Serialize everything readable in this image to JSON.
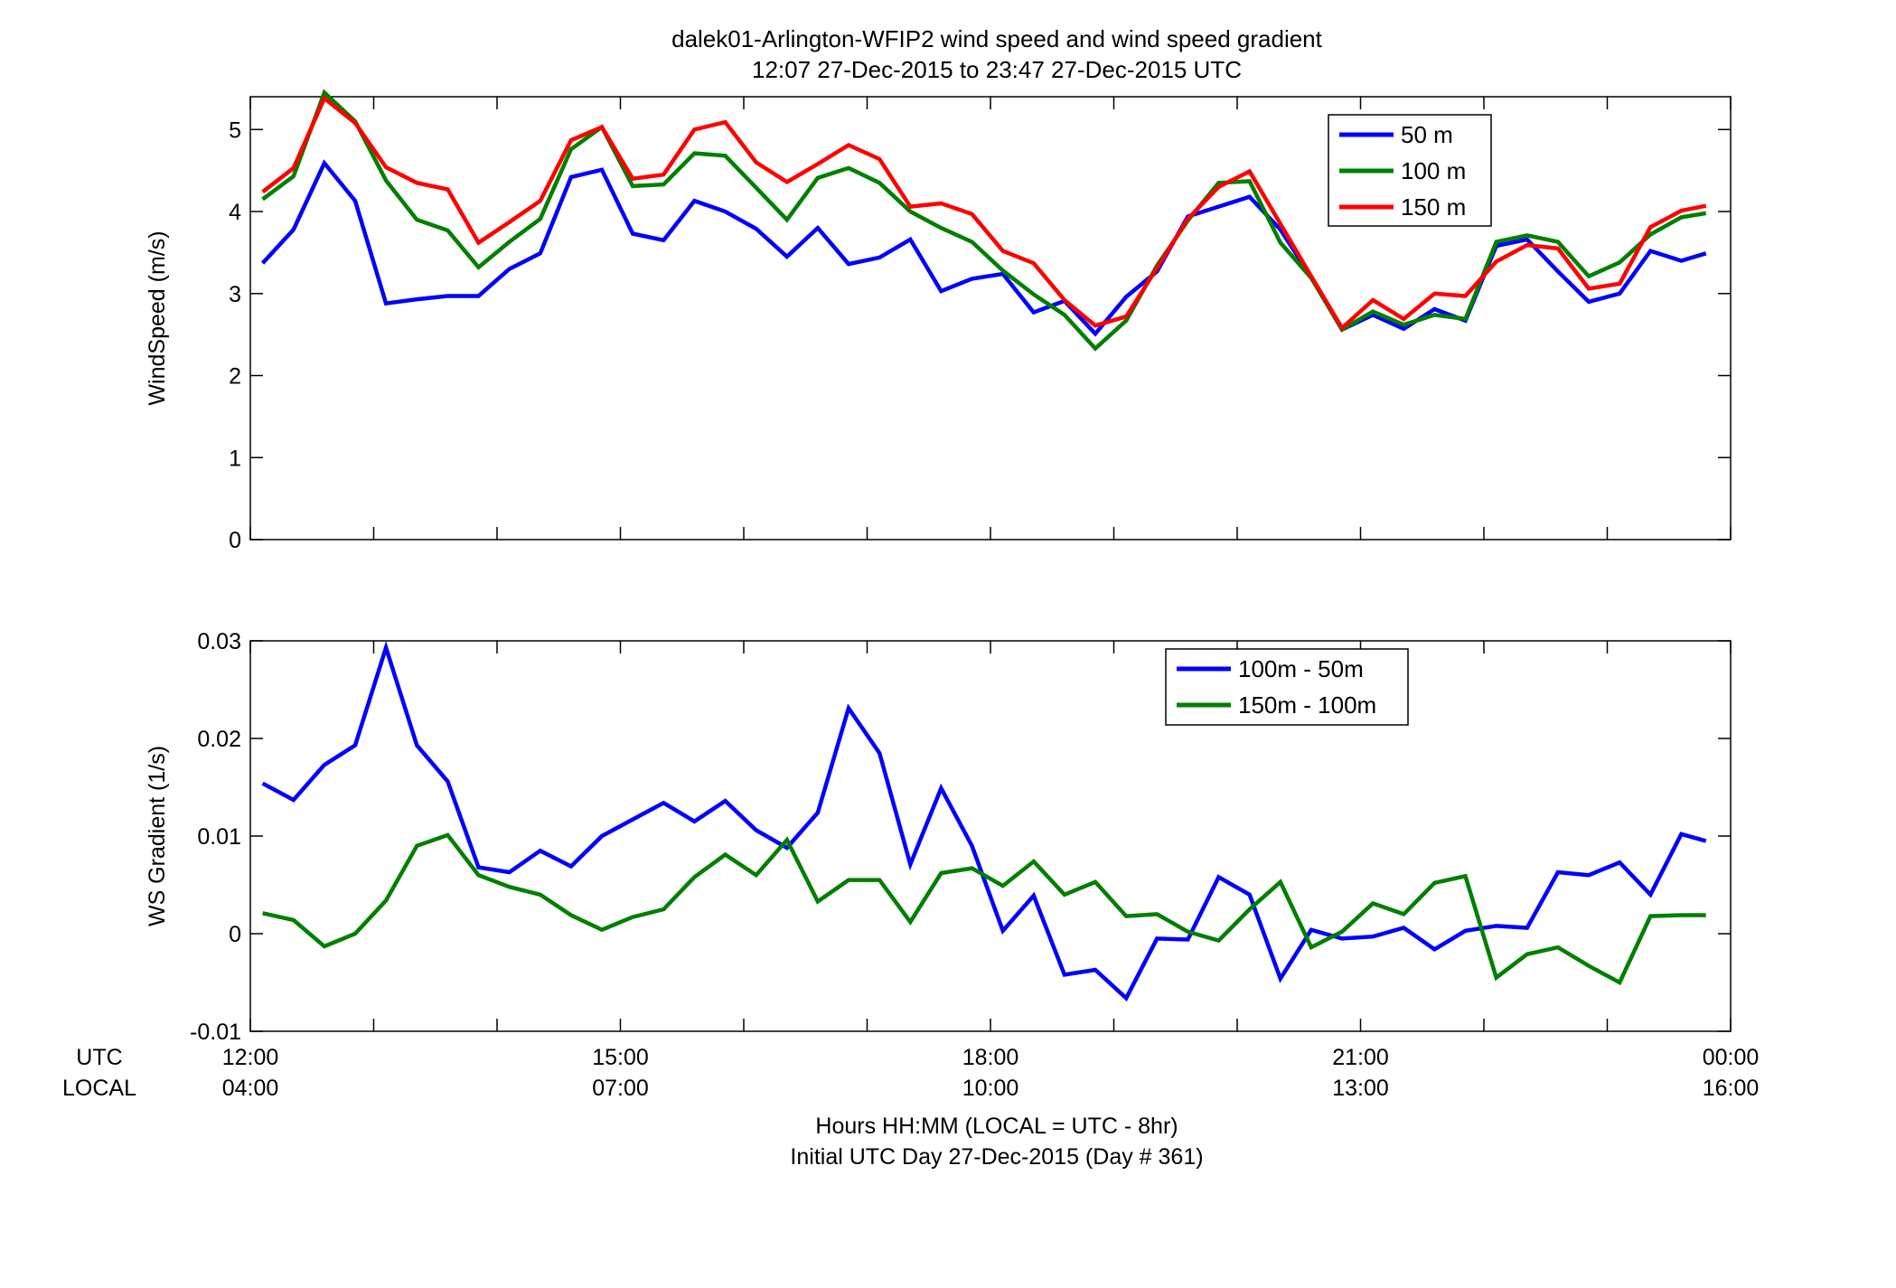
{
  "figure": {
    "title_line1": "dalek01-Arlington-WFIP2  wind speed and wind speed gradient",
    "title_line2": "12:07 27-Dec-2015 to 23:47 27-Dec-2015  UTC",
    "xlabel_line1": "Hours HH:MM  (LOCAL = UTC - 8hr)",
    "xlabel_line2": "Initial UTC Day 27-Dec-2015 (Day # 361)",
    "utc_row_label": "UTC",
    "local_row_label": "LOCAL",
    "utc_ticks": [
      "12:00",
      "15:00",
      "18:00",
      "21:00",
      "00:00"
    ],
    "local_ticks": [
      "04:00",
      "07:00",
      "10:00",
      "13:00",
      "16:00"
    ]
  },
  "chart_data": [
    {
      "type": "line",
      "ylabel": "WindSpeed (m/s)",
      "xlim": [
        12.0,
        24.0
      ],
      "ylim": [
        0,
        5.4
      ],
      "yticks": [
        0,
        1,
        2,
        3,
        4,
        5
      ],
      "ytick_labels": [
        "0",
        "1",
        "2",
        "3",
        "4",
        "5"
      ],
      "legend_position": "top-right",
      "x": [
        12.1,
        12.35,
        12.6,
        12.85,
        13.1,
        13.35,
        13.6,
        13.85,
        14.1,
        14.35,
        14.6,
        14.85,
        15.1,
        15.35,
        15.6,
        15.85,
        16.1,
        16.35,
        16.6,
        16.85,
        17.1,
        17.35,
        17.6,
        17.85,
        18.1,
        18.35,
        18.6,
        18.85,
        19.1,
        19.35,
        19.6,
        19.85,
        20.1,
        20.35,
        20.6,
        20.85,
        21.1,
        21.35,
        21.6,
        21.85,
        22.1,
        22.35,
        22.6,
        22.85,
        23.1,
        23.35,
        23.6,
        23.8
      ],
      "series": [
        {
          "name": "50 m",
          "color": "#0000ff",
          "values": [
            3.37,
            3.78,
            4.59,
            4.13,
            2.88,
            2.93,
            2.97,
            2.97,
            3.3,
            3.49,
            4.42,
            4.51,
            3.73,
            3.65,
            4.13,
            4.0,
            3.79,
            3.45,
            3.8,
            3.36,
            3.44,
            3.66,
            3.03,
            3.18,
            3.24,
            2.77,
            2.91,
            2.51,
            2.96,
            3.27,
            3.94,
            4.06,
            4.18,
            3.78,
            3.2,
            2.56,
            2.74,
            2.57,
            2.81,
            2.67,
            3.58,
            3.66,
            3.27,
            2.9,
            3.0,
            3.52,
            3.4,
            3.49
          ]
        },
        {
          "name": "100 m",
          "color": "#007f00",
          "values": [
            4.15,
            4.43,
            5.45,
            5.1,
            4.38,
            3.9,
            3.77,
            3.32,
            3.63,
            3.91,
            4.76,
            5.03,
            4.31,
            4.33,
            4.71,
            4.68,
            4.29,
            3.9,
            4.41,
            4.53,
            4.35,
            4.0,
            3.8,
            3.63,
            3.28,
            2.99,
            2.74,
            2.33,
            2.67,
            3.34,
            3.89,
            4.35,
            4.37,
            3.62,
            3.19,
            2.56,
            2.78,
            2.62,
            2.74,
            2.69,
            3.63,
            3.71,
            3.63,
            3.21,
            3.38,
            3.72,
            3.93,
            3.98
          ]
        },
        {
          "name": "150 m",
          "color": "#ff0000",
          "values": [
            4.24,
            4.53,
            5.38,
            5.08,
            4.54,
            4.35,
            4.27,
            3.62,
            3.87,
            4.13,
            4.87,
            5.03,
            4.4,
            4.45,
            5.0,
            5.09,
            4.6,
            4.36,
            4.58,
            4.81,
            4.64,
            4.06,
            4.1,
            3.97,
            3.52,
            3.37,
            2.92,
            2.61,
            2.72,
            3.31,
            3.91,
            4.3,
            4.49,
            3.85,
            3.21,
            2.58,
            2.92,
            2.69,
            3.0,
            2.97,
            3.39,
            3.59,
            3.55,
            3.06,
            3.12,
            3.81,
            4.01,
            4.07
          ]
        }
      ]
    },
    {
      "type": "line",
      "ylabel": "WS Gradient (1/s)",
      "xlim": [
        12.0,
        24.0
      ],
      "ylim": [
        -0.01,
        0.03
      ],
      "yticks": [
        -0.01,
        0,
        0.01,
        0.02,
        0.03
      ],
      "ytick_labels": [
        "-0.01",
        "0",
        "0.01",
        "0.02",
        "0.03"
      ],
      "legend_position": "top-right",
      "x": [
        12.1,
        12.35,
        12.6,
        12.85,
        13.1,
        13.35,
        13.6,
        13.85,
        14.1,
        14.35,
        14.6,
        14.85,
        15.1,
        15.35,
        15.6,
        15.85,
        16.1,
        16.35,
        16.6,
        16.85,
        17.1,
        17.35,
        17.6,
        17.85,
        18.1,
        18.35,
        18.6,
        18.85,
        19.1,
        19.35,
        19.6,
        19.85,
        20.1,
        20.35,
        20.6,
        20.85,
        21.1,
        21.35,
        21.6,
        21.85,
        22.1,
        22.35,
        22.6,
        22.85,
        23.1,
        23.35,
        23.6,
        23.8
      ],
      "series": [
        {
          "name": "100m - 50m",
          "color": "#0000ff",
          "values": [
            0.0154,
            0.0137,
            0.0173,
            0.0193,
            0.0293,
            0.0193,
            0.0156,
            0.0068,
            0.0063,
            0.0085,
            0.0069,
            0.01,
            0.0117,
            0.0134,
            0.0115,
            0.0136,
            0.0106,
            0.0088,
            0.0124,
            0.0231,
            0.0185,
            0.0071,
            0.0149,
            0.009,
            0.0003,
            0.0039,
            -0.0042,
            -0.0037,
            -0.0066,
            -0.0005,
            -0.0006,
            0.0058,
            0.004,
            -0.0046,
            0.0004,
            -0.0005,
            -0.0003,
            0.0006,
            -0.0016,
            0.0003,
            0.0008,
            0.0006,
            0.0063,
            0.006,
            0.0073,
            0.004,
            0.0102,
            0.0095
          ]
        },
        {
          "name": "150m - 100m",
          "color": "#007f00",
          "values": [
            0.0021,
            0.0014,
            -0.0013,
            0.0,
            0.0034,
            0.009,
            0.0101,
            0.006,
            0.0048,
            0.004,
            0.0019,
            0.0004,
            0.0017,
            0.0025,
            0.0058,
            0.0081,
            0.006,
            0.0096,
            0.0033,
            0.0055,
            0.0055,
            0.0012,
            0.0062,
            0.0067,
            0.0049,
            0.0074,
            0.004,
            0.0053,
            0.0018,
            0.002,
            0.0002,
            -0.0007,
            0.0025,
            0.0053,
            -0.0014,
            0.0002,
            0.0031,
            0.002,
            0.0052,
            0.0059,
            -0.0045,
            -0.0021,
            -0.0014,
            -0.0033,
            -0.005,
            0.0018,
            0.0019,
            0.0019
          ]
        }
      ]
    }
  ]
}
